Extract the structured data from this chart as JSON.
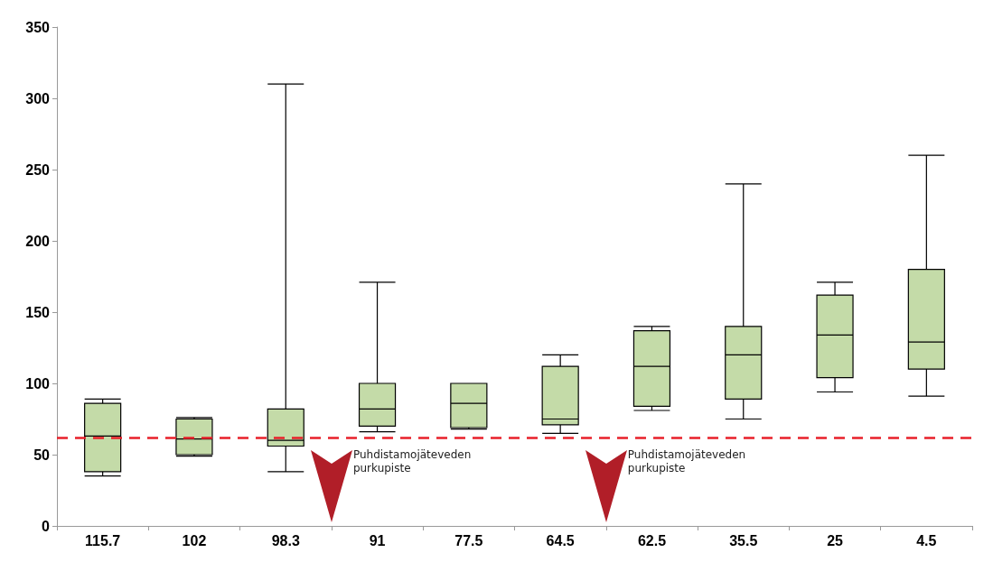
{
  "chart_data": {
    "type": "box",
    "categories": [
      "115.7",
      "102",
      "98.3",
      "91",
      "77.5",
      "64.5",
      "62.5",
      "35.5",
      "25",
      "4.5"
    ],
    "boxes": [
      {
        "low": 35,
        "q1": 38,
        "median": 63,
        "q3": 86,
        "high": 89
      },
      {
        "low": 49,
        "q1": 50,
        "median": 61,
        "q3": 75,
        "high": 76
      },
      {
        "low": 38,
        "q1": 56,
        "median": 60,
        "q3": 82,
        "high": 310
      },
      {
        "low": 66,
        "q1": 70,
        "median": 82,
        "q3": 100,
        "high": 171
      },
      {
        "low": 68,
        "q1": 69,
        "median": 86,
        "q3": 100,
        "high": 100
      },
      {
        "low": 65,
        "q1": 71,
        "median": 75,
        "q3": 112,
        "high": 120
      },
      {
        "low": 81,
        "q1": 84,
        "median": 112,
        "q3": 137,
        "high": 140
      },
      {
        "low": 75,
        "q1": 89,
        "median": 120,
        "q3": 140,
        "high": 240
      },
      {
        "low": 94,
        "q1": 104,
        "median": 134,
        "q3": 162,
        "high": 171
      },
      {
        "low": 91,
        "q1": 110,
        "median": 129,
        "q3": 180,
        "high": 260
      }
    ],
    "color": "#c4dba8",
    "ylim": [
      0,
      350
    ],
    "yticks": [
      0,
      50,
      100,
      150,
      200,
      250,
      300,
      350
    ],
    "ref_lines": [
      {
        "axis": "y",
        "value": 62,
        "color": "#e8202a",
        "line_style": "dashed"
      }
    ],
    "annotations": [
      "Puhdistamojäteveden\npurkupiste",
      "Puhdistamojäteveden\npurkupiste"
    ],
    "grid": false
  }
}
